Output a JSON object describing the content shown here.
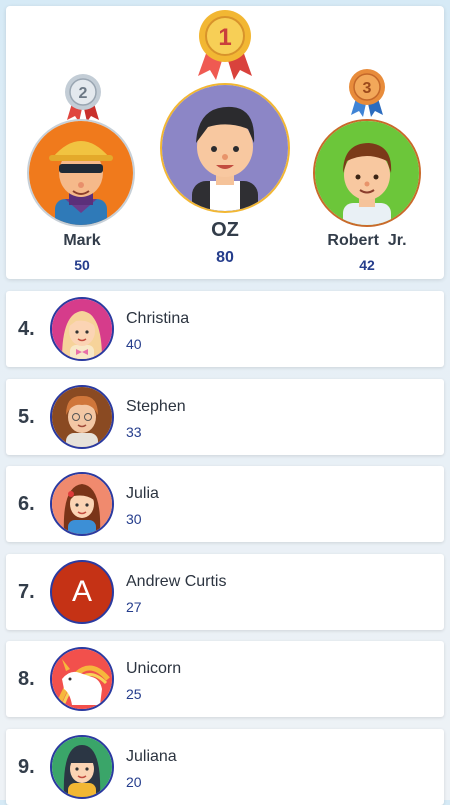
{
  "podium": {
    "first": {
      "name": "OZ",
      "score": "80",
      "rank": "1"
    },
    "second": {
      "name": "Mark",
      "score": "50",
      "rank": "2"
    },
    "third": {
      "name": "Robert  Jr.",
      "score": "42",
      "rank": "3"
    }
  },
  "list": [
    {
      "rank": "4.",
      "name": "Christina",
      "score": "40"
    },
    {
      "rank": "5.",
      "name": "Stephen",
      "score": "33"
    },
    {
      "rank": "6.",
      "name": "Julia",
      "score": "30"
    },
    {
      "rank": "7.",
      "name": "Andrew Curtis",
      "score": "27",
      "initial": "A"
    },
    {
      "rank": "8.",
      "name": "Unicorn",
      "score": "25"
    },
    {
      "rank": "9.",
      "name": "Juliana",
      "score": "20"
    }
  ],
  "colors": {
    "gold": "#f2b733",
    "silver": "#c3cdd6",
    "bronze": "#e88c3b",
    "score": "#253d8c"
  }
}
